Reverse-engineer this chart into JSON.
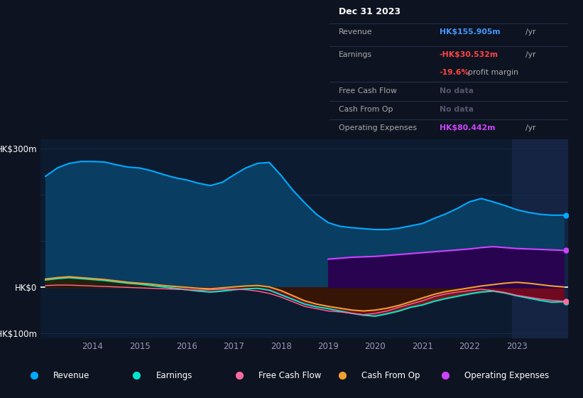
{
  "bg_color": "#0d1320",
  "plot_bg_color": "#0c1b30",
  "highlight_bg": "#162444",
  "years": [
    2013.0,
    2013.25,
    2013.5,
    2013.75,
    2014.0,
    2014.25,
    2014.5,
    2014.75,
    2015.0,
    2015.25,
    2015.5,
    2015.75,
    2016.0,
    2016.25,
    2016.5,
    2016.75,
    2017.0,
    2017.25,
    2017.5,
    2017.75,
    2018.0,
    2018.25,
    2018.5,
    2018.75,
    2019.0,
    2019.25,
    2019.5,
    2019.75,
    2020.0,
    2020.25,
    2020.5,
    2020.75,
    2021.0,
    2021.25,
    2021.5,
    2021.75,
    2022.0,
    2022.25,
    2022.5,
    2022.75,
    2023.0,
    2023.25,
    2023.5,
    2023.75,
    2024.0
  ],
  "revenue": [
    240,
    258,
    268,
    272,
    272,
    271,
    265,
    260,
    258,
    252,
    244,
    237,
    232,
    225,
    220,
    227,
    243,
    258,
    268,
    270,
    242,
    210,
    183,
    158,
    140,
    132,
    129,
    127,
    125,
    125,
    128,
    133,
    138,
    149,
    159,
    171,
    185,
    192,
    185,
    177,
    168,
    162,
    158,
    156,
    156
  ],
  "earnings": [
    16,
    19,
    21,
    19,
    17,
    15,
    12,
    9,
    7,
    4,
    1,
    -2,
    -5,
    -8,
    -10,
    -8,
    -5,
    -3,
    -2,
    -6,
    -16,
    -26,
    -36,
    -42,
    -46,
    -51,
    -56,
    -60,
    -62,
    -57,
    -51,
    -43,
    -38,
    -30,
    -24,
    -19,
    -14,
    -10,
    -8,
    -12,
    -18,
    -23,
    -28,
    -32,
    -31
  ],
  "free_cash_flow": [
    4,
    5,
    5,
    4,
    3,
    2,
    1,
    0,
    -1,
    -2,
    -3,
    -4,
    -5,
    -6,
    -5,
    -4,
    -4,
    -5,
    -8,
    -13,
    -21,
    -31,
    -41,
    -46,
    -51,
    -53,
    -56,
    -59,
    -56,
    -51,
    -43,
    -36,
    -29,
    -20,
    -14,
    -10,
    -7,
    -4,
    -7,
    -11,
    -17,
    -21,
    -25,
    -28,
    -30
  ],
  "cash_from_op": [
    18,
    21,
    23,
    21,
    19,
    17,
    14,
    11,
    9,
    7,
    4,
    2,
    0,
    -2,
    -3,
    -1,
    1,
    3,
    4,
    1,
    -7,
    -18,
    -29,
    -36,
    -41,
    -45,
    -49,
    -51,
    -49,
    -45,
    -39,
    -31,
    -23,
    -15,
    -9,
    -5,
    -1,
    3,
    6,
    9,
    11,
    9,
    6,
    3,
    1
  ],
  "op_expenses": [
    null,
    null,
    null,
    null,
    null,
    null,
    null,
    null,
    null,
    null,
    null,
    null,
    null,
    null,
    null,
    null,
    null,
    null,
    null,
    null,
    null,
    null,
    null,
    null,
    61,
    63,
    65,
    66,
    67,
    69,
    71,
    73,
    75,
    77,
    79,
    81,
    83,
    86,
    88,
    86,
    84,
    83,
    82,
    81,
    80
  ],
  "revenue_color": "#00aaff",
  "revenue_fill": "#0a3d62",
  "earnings_color": "#00e5cc",
  "earnings_fill_pos": "#1a4a3a",
  "earnings_fill_neg": "#8b1a1a",
  "free_cf_color": "#ff6b9d",
  "free_cf_fill": "#6b0020",
  "cash_op_color": "#f0a030",
  "cash_op_fill": "#2a1800",
  "op_exp_color": "#cc44ff",
  "op_exp_fill": "#2a0050",
  "highlight_x_start": 2022.9,
  "highlight_x_end": 2024.1,
  "x_min": 2012.9,
  "x_max": 2024.1,
  "y_min": -110,
  "y_max": 320,
  "yticks": [
    300,
    0,
    -100
  ],
  "ytick_labels": [
    "HK$300m",
    "HK$0",
    "-HK$100m"
  ],
  "xtick_years": [
    2014,
    2015,
    2016,
    2017,
    2018,
    2019,
    2020,
    2021,
    2022,
    2023
  ],
  "gridlines": [
    300,
    200,
    100,
    0,
    -100
  ],
  "info_box": {
    "date": "Dec 31 2023",
    "revenue_label": "Revenue",
    "revenue_value": "HK$155.905m",
    "revenue_color": "#4499ff",
    "earnings_label": "Earnings",
    "earnings_value": "-HK$30.532m",
    "earnings_color": "#ff4444",
    "earnings_margin": "-19.6%",
    "earnings_margin_color": "#ff4444",
    "fcf_label": "Free Cash Flow",
    "fcf_value": "No data",
    "cop_label": "Cash From Op",
    "cop_value": "No data",
    "opex_label": "Operating Expenses",
    "opex_value": "HK$80.442m",
    "opex_color": "#cc44ff",
    "nodata_color": "#555570"
  },
  "legend_items": [
    {
      "label": "Revenue",
      "color": "#00aaff"
    },
    {
      "label": "Earnings",
      "color": "#00e5cc"
    },
    {
      "label": "Free Cash Flow",
      "color": "#ff6b9d"
    },
    {
      "label": "Cash From Op",
      "color": "#f0a030"
    },
    {
      "label": "Operating Expenses",
      "color": "#cc44ff"
    }
  ]
}
